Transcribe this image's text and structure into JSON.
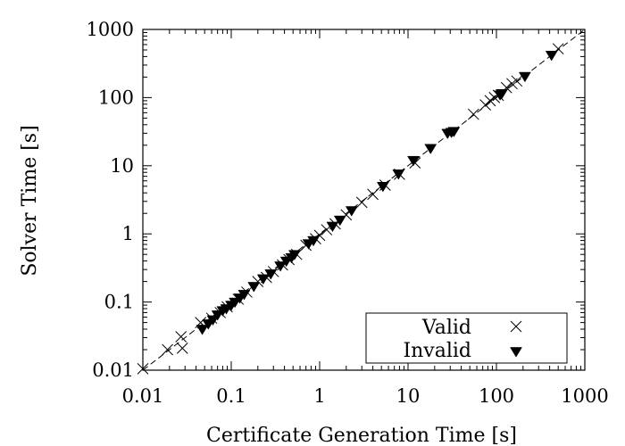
{
  "chart_data": {
    "type": "scatter",
    "xlabel": "Certificate Generation Time [s]",
    "ylabel": "Solver Time [s]",
    "xscale": "log",
    "yscale": "log",
    "xlim": [
      0.01,
      1000
    ],
    "ylim": [
      0.01,
      1000
    ],
    "xticks": [
      {
        "value": 0.01,
        "label": "0.01"
      },
      {
        "value": 0.1,
        "label": "0.1"
      },
      {
        "value": 1,
        "label": "1"
      },
      {
        "value": 10,
        "label": "10"
      },
      {
        "value": 100,
        "label": "100"
      },
      {
        "value": 1000,
        "label": "1000"
      }
    ],
    "yticks": [
      {
        "value": 0.01,
        "label": "0.01"
      },
      {
        "value": 0.1,
        "label": "0.1"
      },
      {
        "value": 1,
        "label": "1"
      },
      {
        "value": 10,
        "label": "10"
      },
      {
        "value": 100,
        "label": "100"
      },
      {
        "value": 1000,
        "label": "1000"
      }
    ],
    "grid": false,
    "legend_position": "bottom-right",
    "reference_line": "y = x (dashed)",
    "colors": {
      "marks": "#000000",
      "background": "#ffffff"
    },
    "series": [
      {
        "name": "Valid",
        "marker": "x",
        "points": [
          [
            0.01,
            0.0105
          ],
          [
            0.019,
            0.02
          ],
          [
            0.027,
            0.031
          ],
          [
            0.028,
            0.021
          ],
          [
            0.045,
            0.05
          ],
          [
            0.06,
            0.058
          ],
          [
            0.075,
            0.07
          ],
          [
            0.09,
            0.085
          ],
          [
            0.12,
            0.11
          ],
          [
            0.15,
            0.14
          ],
          [
            0.2,
            0.2
          ],
          [
            0.25,
            0.23
          ],
          [
            0.3,
            0.28
          ],
          [
            0.38,
            0.35
          ],
          [
            0.45,
            0.42
          ],
          [
            0.55,
            0.5
          ],
          [
            0.7,
            0.68
          ],
          [
            0.9,
            0.85
          ],
          [
            1.0,
            0.95
          ],
          [
            1.2,
            1.15
          ],
          [
            1.5,
            1.4
          ],
          [
            2.0,
            1.9
          ],
          [
            3.0,
            2.9
          ],
          [
            4.0,
            3.8
          ],
          [
            5.5,
            5.2
          ],
          [
            8.0,
            7.5
          ],
          [
            12,
            11
          ],
          [
            55,
            57
          ],
          [
            75,
            78
          ],
          [
            85,
            90
          ],
          [
            95,
            100
          ],
          [
            105,
            108
          ],
          [
            130,
            140
          ],
          [
            150,
            160
          ],
          [
            170,
            175
          ],
          [
            500,
            520
          ]
        ]
      },
      {
        "name": "Invalid",
        "marker": "triangle-down",
        "points": [
          [
            0.047,
            0.04
          ],
          [
            0.055,
            0.048
          ],
          [
            0.062,
            0.055
          ],
          [
            0.07,
            0.065
          ],
          [
            0.08,
            0.075
          ],
          [
            0.088,
            0.08
          ],
          [
            0.1,
            0.09
          ],
          [
            0.11,
            0.1
          ],
          [
            0.125,
            0.115
          ],
          [
            0.14,
            0.13
          ],
          [
            0.18,
            0.17
          ],
          [
            0.23,
            0.22
          ],
          [
            0.28,
            0.26
          ],
          [
            0.36,
            0.34
          ],
          [
            0.42,
            0.4
          ],
          [
            0.48,
            0.45
          ],
          [
            0.52,
            0.5
          ],
          [
            0.75,
            0.72
          ],
          [
            0.85,
            0.8
          ],
          [
            1.4,
            1.3
          ],
          [
            1.7,
            1.6
          ],
          [
            2.3,
            2.2
          ],
          [
            5.2,
            5.0
          ],
          [
            7.8,
            7.6
          ],
          [
            11.5,
            12
          ],
          [
            18,
            18
          ],
          [
            28,
            30
          ],
          [
            31,
            31
          ],
          [
            33,
            32
          ],
          [
            110,
            110
          ],
          [
            115,
            115
          ],
          [
            210,
            205
          ],
          [
            420,
            420
          ]
        ]
      }
    ]
  }
}
